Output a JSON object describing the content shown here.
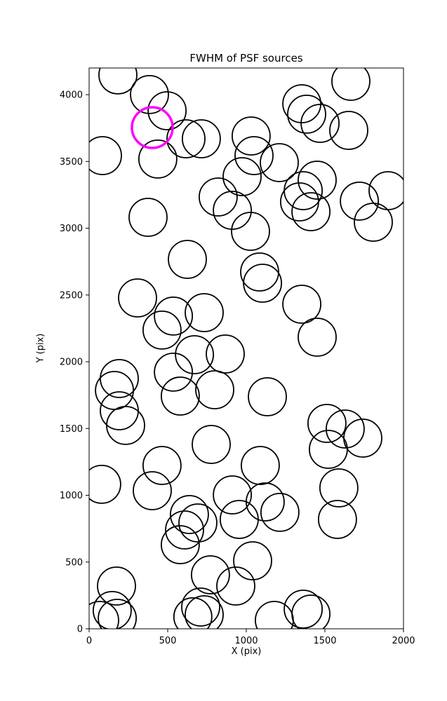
{
  "chart_data": {
    "type": "scatter",
    "title": "FWHM of PSF sources",
    "xlabel": "X (pix)",
    "ylabel": "Y (pix)",
    "xlim": [
      0,
      2000
    ],
    "ylim": [
      0,
      4200
    ],
    "x_ticks": [
      0,
      500,
      1000,
      1500,
      2000
    ],
    "y_ticks": [
      0,
      500,
      1000,
      1500,
      2000,
      2500,
      3000,
      3500,
      4000
    ],
    "grid": false,
    "legend": null,
    "marker": {
      "shape": "circle",
      "fill": "none",
      "stroke": "#000000",
      "radius_px": 27,
      "stroke_width": 1.8
    },
    "highlight": {
      "x": 402,
      "y": 3754,
      "stroke": "#ff00ff",
      "radius_px": 29,
      "stroke_width": 3.5
    },
    "points": [
      [
        183,
        4148
      ],
      [
        384,
        4001
      ],
      [
        496,
        3880
      ],
      [
        1665,
        4100
      ],
      [
        1384,
        3854
      ],
      [
        1469,
        3785
      ],
      [
        1652,
        3733
      ],
      [
        616,
        3670
      ],
      [
        714,
        3670
      ],
      [
        437,
        3518
      ],
      [
        85,
        3544
      ],
      [
        1031,
        3691
      ],
      [
        1049,
        3544
      ],
      [
        1210,
        3491
      ],
      [
        973,
        3386
      ],
      [
        1353,
        3932
      ],
      [
        1451,
        3360
      ],
      [
        1362,
        3281
      ],
      [
        1339,
        3197
      ],
      [
        1411,
        3124
      ],
      [
        1719,
        3203
      ],
      [
        1902,
        3281
      ],
      [
        1808,
        3045
      ],
      [
        821,
        3234
      ],
      [
        911,
        3134
      ],
      [
        375,
        3082
      ],
      [
        1027,
        2977
      ],
      [
        625,
        2767
      ],
      [
        1085,
        2672
      ],
      [
        1103,
        2588
      ],
      [
        1353,
        2431
      ],
      [
        308,
        2478
      ],
      [
        536,
        2342
      ],
      [
        732,
        2368
      ],
      [
        464,
        2237
      ],
      [
        1451,
        2184
      ],
      [
        670,
        2053
      ],
      [
        866,
        2058
      ],
      [
        536,
        1922
      ],
      [
        192,
        1874
      ],
      [
        161,
        1785
      ],
      [
        580,
        1743
      ],
      [
        799,
        1790
      ],
      [
        1134,
        1738
      ],
      [
        192,
        1633
      ],
      [
        232,
        1523
      ],
      [
        1513,
        1538
      ],
      [
        1629,
        1496
      ],
      [
        1741,
        1428
      ],
      [
        1522,
        1344
      ],
      [
        777,
        1381
      ],
      [
        464,
        1223
      ],
      [
        1089,
        1223
      ],
      [
        80,
        1082
      ],
      [
        402,
        1034
      ],
      [
        1589,
        1055
      ],
      [
        911,
        1003
      ],
      [
        1120,
        950
      ],
      [
        1214,
        872
      ],
      [
        638,
        856
      ],
      [
        692,
        793
      ],
      [
        607,
        740
      ],
      [
        955,
        819
      ],
      [
        1580,
        819
      ],
      [
        580,
        630
      ],
      [
        1040,
        509
      ],
      [
        772,
        404
      ],
      [
        933,
        320
      ],
      [
        174,
        320
      ],
      [
        710,
        163
      ],
      [
        147,
        137
      ],
      [
        179,
        79
      ],
      [
        732,
        105
      ],
      [
        1362,
        147
      ],
      [
        1411,
        110
      ],
      [
        1178,
        63
      ],
      [
        660,
        90
      ],
      [
        67,
        63
      ]
    ]
  }
}
